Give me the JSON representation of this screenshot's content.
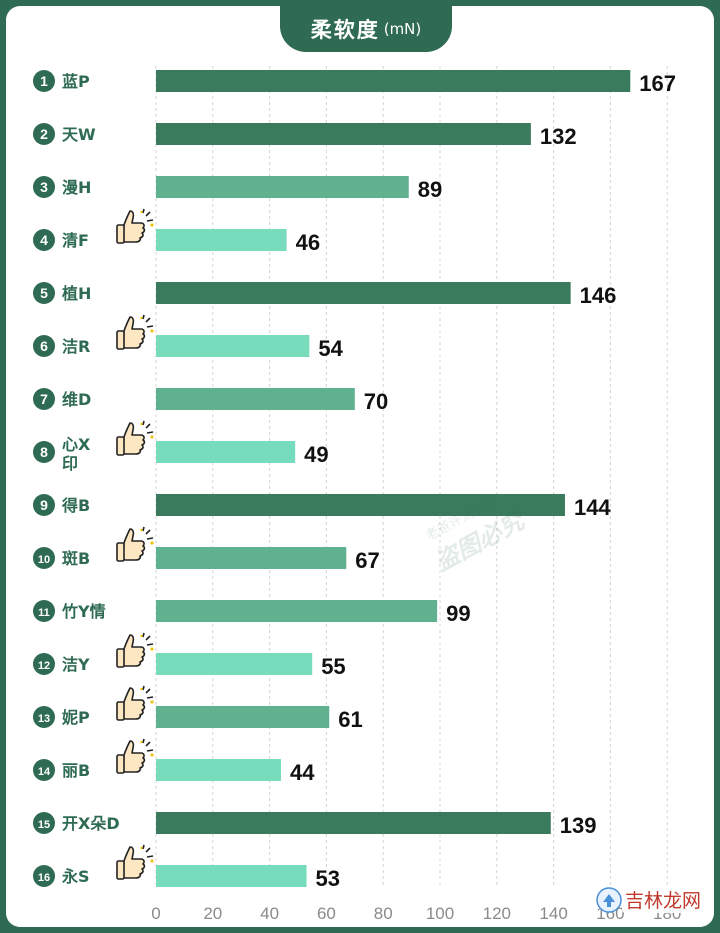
{
  "title": {
    "main": "柔软度",
    "unit": "(mN)"
  },
  "chart_data": {
    "type": "bar",
    "orientation": "horizontal",
    "title": "柔软度 (mN)",
    "categories": [
      {
        "num": "1",
        "label": "蓝P",
        "thumb": false
      },
      {
        "num": "2",
        "label": "天W",
        "thumb": false
      },
      {
        "num": "3",
        "label": "漫H",
        "thumb": false
      },
      {
        "num": "4",
        "label": "清F",
        "thumb": true
      },
      {
        "num": "5",
        "label": "植H",
        "thumb": false
      },
      {
        "num": "6",
        "label": "洁R",
        "thumb": true
      },
      {
        "num": "7",
        "label": "维D",
        "thumb": false
      },
      {
        "num": "8",
        "label": "心X印",
        "thumb": true
      },
      {
        "num": "9",
        "label": "得B",
        "thumb": false
      },
      {
        "num": "10",
        "label": "斑B",
        "thumb": true
      },
      {
        "num": "11",
        "label": "竹Y情",
        "thumb": false
      },
      {
        "num": "12",
        "label": "洁Y",
        "thumb": true
      },
      {
        "num": "13",
        "label": "妮P",
        "thumb": true
      },
      {
        "num": "14",
        "label": "丽B",
        "thumb": true
      },
      {
        "num": "15",
        "label": "开X朵D",
        "thumb": false
      },
      {
        "num": "16",
        "label": "永S",
        "thumb": true
      }
    ],
    "values": [
      167,
      132,
      89,
      46,
      146,
      54,
      70,
      49,
      144,
      67,
      99,
      55,
      61,
      44,
      139,
      53
    ],
    "data_labels": [
      "167",
      "132",
      "89",
      "46",
      "146",
      "54",
      "70",
      "49",
      "144",
      "67",
      "99",
      "55",
      "61",
      "44",
      "139",
      "53"
    ],
    "x_ticks": [
      0,
      20,
      40,
      60,
      80,
      100,
      120,
      140,
      160,
      180
    ],
    "xlim": [
      0,
      180
    ],
    "grid": "vertical dashed",
    "colors": {
      "high": "#3a7a5d",
      "mid": "#5fb18f",
      "low": "#77dcbc"
    }
  },
  "icons": {
    "thumb": "thumbs-up-icon"
  },
  "watermark": {
    "line1": "老爸评测原创",
    "line2": "盗图必究"
  },
  "site_watermark": {
    "text": "吉林龙网"
  }
}
